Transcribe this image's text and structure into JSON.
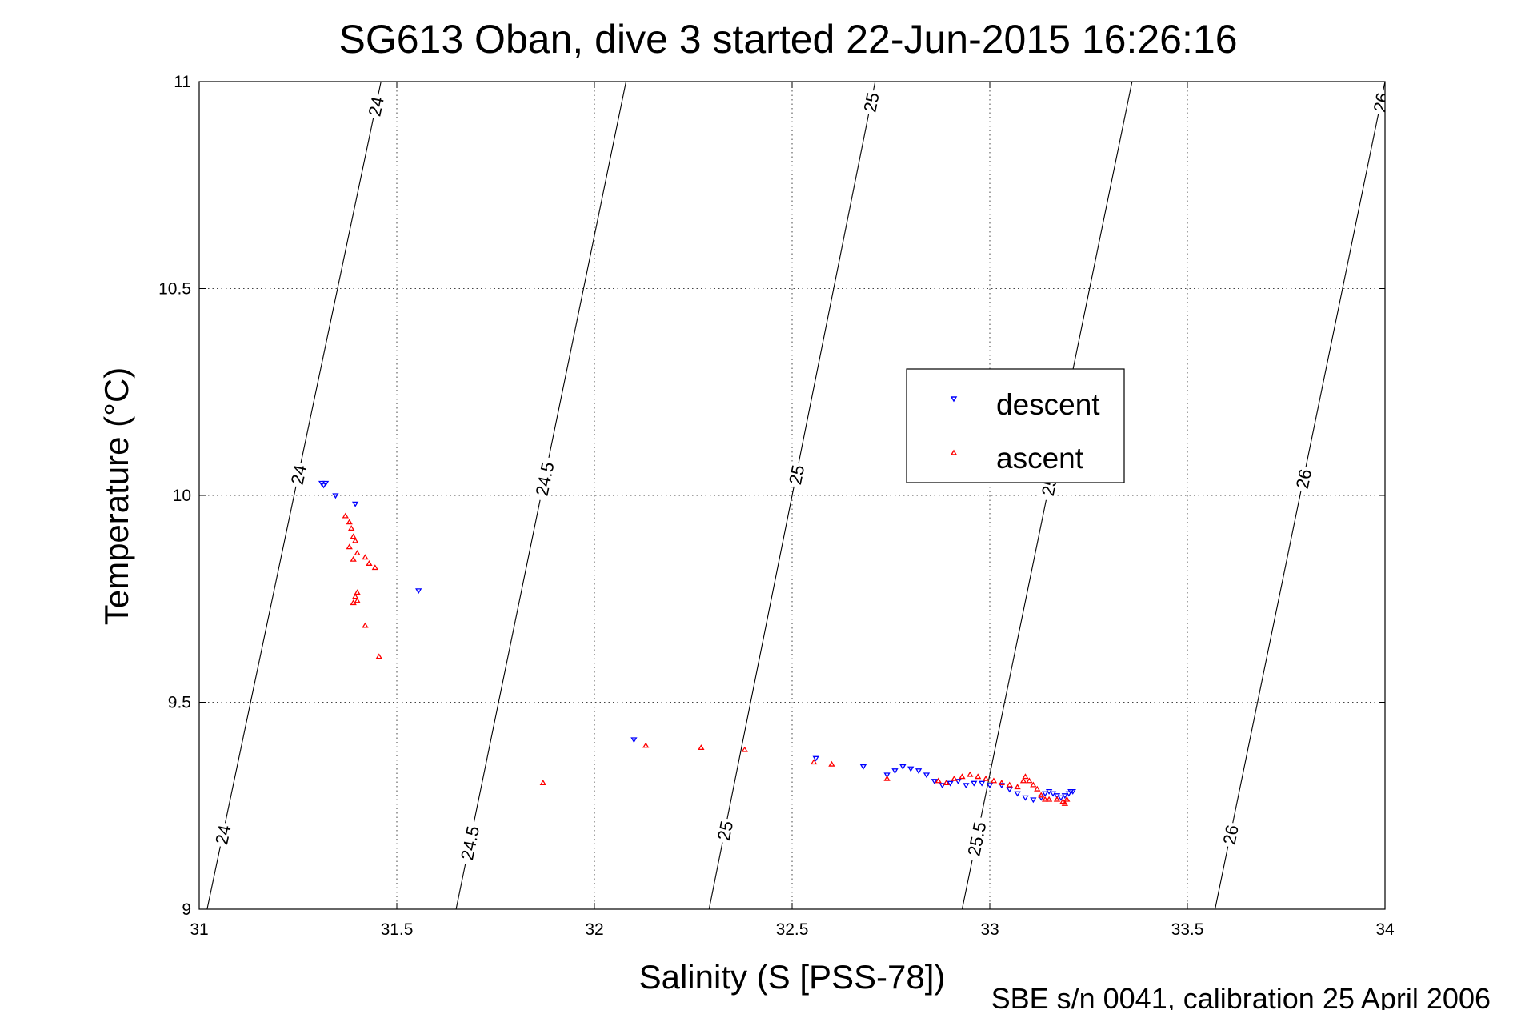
{
  "chart_data": {
    "type": "scatter",
    "title": "SG613 Oban, dive 3 started 22-Jun-2015 16:26:16",
    "xlabel": "Salinity (S [PSS-78])",
    "ylabel": "Temperature (°C)",
    "xlim": [
      31,
      34
    ],
    "ylim": [
      9,
      11
    ],
    "xticks": [
      "31",
      "31.5",
      "32",
      "32.5",
      "33",
      "33.5",
      "34"
    ],
    "yticks": [
      "9",
      "9.5",
      "10",
      "10.5",
      "11"
    ],
    "grid": true,
    "legend_position": "center-right",
    "footnote": "SBE s/n 0041, calibration 25 April 2006",
    "series": [
      {
        "name": "descent",
        "marker": "triangle-down",
        "color": "#0000ff",
        "points": [
          [
            31.31,
            10.03
          ],
          [
            31.315,
            10.025
          ],
          [
            31.32,
            10.03
          ],
          [
            31.345,
            10.0
          ],
          [
            31.395,
            9.98
          ],
          [
            31.555,
            9.77
          ],
          [
            32.1,
            9.41
          ],
          [
            32.56,
            9.365
          ],
          [
            32.68,
            9.345
          ],
          [
            32.74,
            9.325
          ],
          [
            32.76,
            9.335
          ],
          [
            32.78,
            9.345
          ],
          [
            32.8,
            9.34
          ],
          [
            32.82,
            9.335
          ],
          [
            32.84,
            9.325
          ],
          [
            32.86,
            9.31
          ],
          [
            32.88,
            9.3
          ],
          [
            32.9,
            9.305
          ],
          [
            32.92,
            9.31
          ],
          [
            32.94,
            9.3
          ],
          [
            32.96,
            9.305
          ],
          [
            32.98,
            9.305
          ],
          [
            33.0,
            9.3
          ],
          [
            33.03,
            9.3
          ],
          [
            33.05,
            9.29
          ],
          [
            33.07,
            9.28
          ],
          [
            33.09,
            9.27
          ],
          [
            33.11,
            9.265
          ],
          [
            33.13,
            9.27
          ],
          [
            33.14,
            9.28
          ],
          [
            33.15,
            9.285
          ],
          [
            33.16,
            9.28
          ],
          [
            33.17,
            9.275
          ],
          [
            33.18,
            9.27
          ],
          [
            33.19,
            9.275
          ],
          [
            33.2,
            9.28
          ],
          [
            33.205,
            9.285
          ],
          [
            33.21,
            9.285
          ]
        ]
      },
      {
        "name": "ascent",
        "marker": "triangle-up",
        "color": "#ff0000",
        "points": [
          [
            31.37,
            9.95
          ],
          [
            31.38,
            9.935
          ],
          [
            31.385,
            9.92
          ],
          [
            31.39,
            9.9
          ],
          [
            31.395,
            9.89
          ],
          [
            31.38,
            9.875
          ],
          [
            31.4,
            9.86
          ],
          [
            31.39,
            9.845
          ],
          [
            31.42,
            9.85
          ],
          [
            31.43,
            9.835
          ],
          [
            31.445,
            9.825
          ],
          [
            31.4,
            9.765
          ],
          [
            31.395,
            9.755
          ],
          [
            31.4,
            9.745
          ],
          [
            31.39,
            9.74
          ],
          [
            31.42,
            9.685
          ],
          [
            31.455,
            9.61
          ],
          [
            31.87,
            9.305
          ],
          [
            32.13,
            9.395
          ],
          [
            32.27,
            9.39
          ],
          [
            32.38,
            9.385
          ],
          [
            32.555,
            9.355
          ],
          [
            32.6,
            9.35
          ],
          [
            32.74,
            9.315
          ],
          [
            32.87,
            9.31
          ],
          [
            32.89,
            9.305
          ],
          [
            32.91,
            9.315
          ],
          [
            32.93,
            9.32
          ],
          [
            32.95,
            9.325
          ],
          [
            32.97,
            9.32
          ],
          [
            32.99,
            9.315
          ],
          [
            33.01,
            9.31
          ],
          [
            33.03,
            9.305
          ],
          [
            33.05,
            9.3
          ],
          [
            33.07,
            9.295
          ],
          [
            33.085,
            9.31
          ],
          [
            33.09,
            9.32
          ],
          [
            33.1,
            9.31
          ],
          [
            33.11,
            9.3
          ],
          [
            33.12,
            9.29
          ],
          [
            33.13,
            9.275
          ],
          [
            33.14,
            9.265
          ],
          [
            33.15,
            9.265
          ],
          [
            33.17,
            9.265
          ],
          [
            33.185,
            9.26
          ],
          [
            33.19,
            9.255
          ],
          [
            33.195,
            9.265
          ]
        ]
      }
    ],
    "density_contours": [
      {
        "label": "24",
        "x_at_ymin": 31.02,
        "x_at_ymax": 31.46,
        "labels_at": [
          {
            "text": "24",
            "y": 9.18
          },
          {
            "text": "24",
            "y": 10.05
          },
          {
            "text": "24",
            "y": 10.94
          }
        ]
      },
      {
        "label": "24.5",
        "x_at_ymin": 31.65,
        "x_at_ymax": 32.08,
        "labels_at": [
          {
            "text": "24.5",
            "y": 9.16
          },
          {
            "text": "24.5",
            "y": 10.04
          }
        ]
      },
      {
        "label": "25",
        "x_at_ymin": 32.29,
        "x_at_ymax": 32.71,
        "labels_at": [
          {
            "text": "25",
            "y": 9.19
          },
          {
            "text": "25",
            "y": 10.05
          },
          {
            "text": "25",
            "y": 10.95
          }
        ]
      },
      {
        "label": "25.5",
        "x_at_ymin": 32.93,
        "x_at_ymax": 33.36,
        "labels_at": [
          {
            "text": "25.5",
            "y": 9.17
          },
          {
            "text": "25.5",
            "y": 10.04
          }
        ]
      },
      {
        "label": "26",
        "x_at_ymin": 33.57,
        "x_at_ymax": 34.0,
        "labels_at": [
          {
            "text": "26",
            "y": 9.18
          },
          {
            "text": "26",
            "y": 10.04
          },
          {
            "text": "26",
            "y": 10.95
          }
        ]
      }
    ]
  }
}
